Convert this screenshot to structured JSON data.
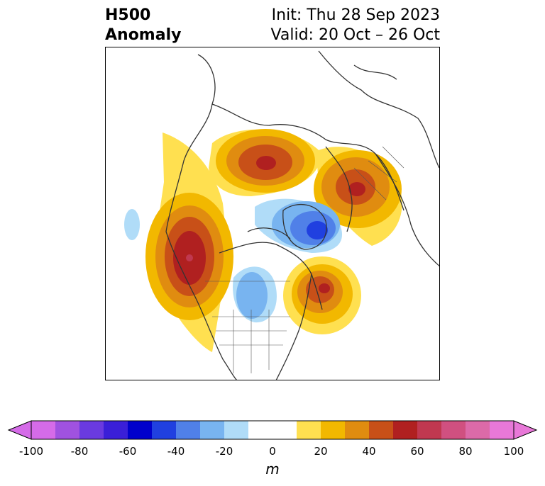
{
  "title": {
    "line1": "H500",
    "line2": "Anomaly"
  },
  "info": {
    "init": "Init: Thu 28 Sep 2023",
    "valid": "Valid: 20 Oct – 26 Oct"
  },
  "colorbar": {
    "unit": "m",
    "ticks": [
      "-100",
      "-80",
      "-60",
      "-40",
      "-20",
      "0",
      "20",
      "40",
      "60",
      "80",
      "100"
    ],
    "colors": [
      "#d56be8",
      "#a052e0",
      "#6a3ae0",
      "#3a1fd8",
      "#0000cc",
      "#2040e0",
      "#5080e8",
      "#78b4f0",
      "#b0dcf8",
      "#ffffff",
      "#ffffff",
      "#ffe050",
      "#f2b800",
      "#e08c10",
      "#c85018",
      "#b02020",
      "#c03850",
      "#d05080",
      "#dc6aa8",
      "#e878d8"
    ],
    "min_color": "#d56be8",
    "max_color": "#e878d8"
  },
  "map": {
    "field": "500 hPa geopotential height anomaly",
    "anomalies": [
      {
        "region": "west coast north america",
        "peak_m": 60
      },
      {
        "region": "northern siberia",
        "peak_m": 60
      },
      {
        "region": "scandinavia / western russia",
        "peak_m": 60
      },
      {
        "region": "labrador / hudson region",
        "peak_m": 60
      },
      {
        "region": "arctic / greenland",
        "peak_m": -50
      },
      {
        "region": "central canada / great plains",
        "peak_m": -30
      },
      {
        "region": "north pacific",
        "peak_m": -15
      }
    ]
  }
}
